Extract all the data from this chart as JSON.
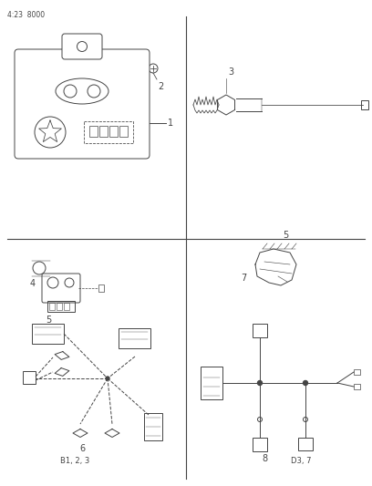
{
  "page_code": "4:23  8000",
  "bg_color": "#ffffff",
  "line_color": "#444444",
  "label_color": "#444444",
  "labels": {
    "item1": "1",
    "item2": "2",
    "item3": "3",
    "item4": "4",
    "item5": "5",
    "item6": "6",
    "item7": "7",
    "item8": "8",
    "ref1": "B1, 2, 3",
    "ref2": "D3, 7"
  },
  "divider_vx": 204,
  "divider_hy": 262
}
